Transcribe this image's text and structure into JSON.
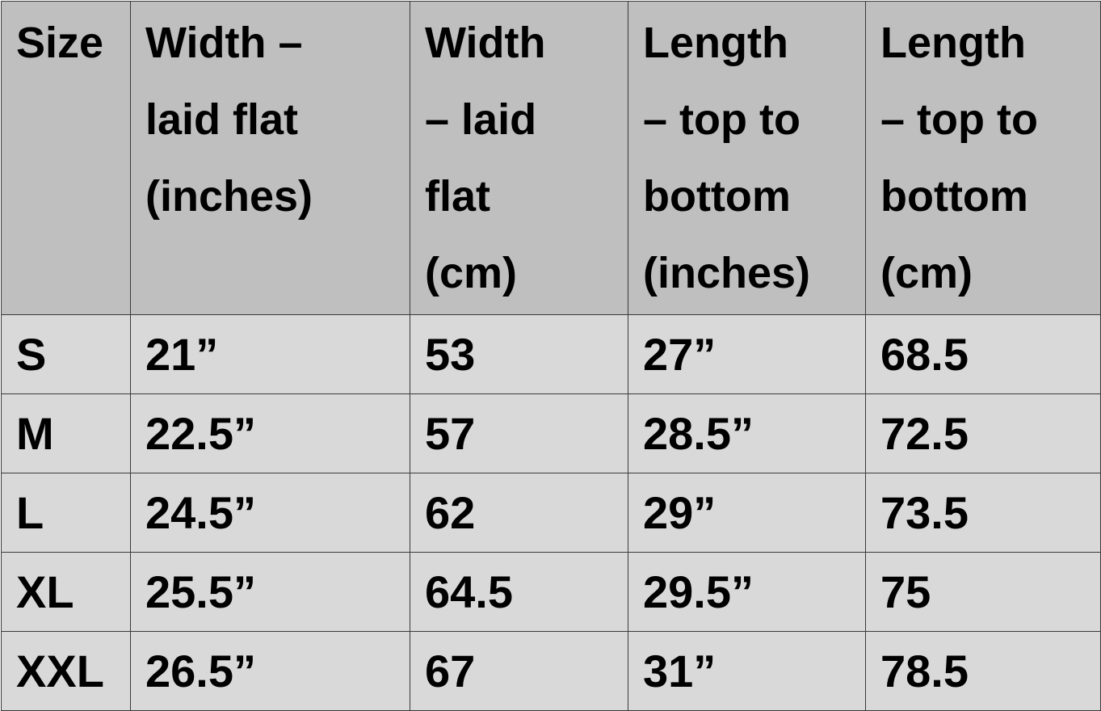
{
  "table": {
    "headers": [
      {
        "lines": [
          "Size"
        ]
      },
      {
        "lines": [
          "Width –",
          "laid flat",
          "(inches)"
        ]
      },
      {
        "lines": [
          "Width",
          "– laid",
          "flat",
          "(cm)"
        ]
      },
      {
        "lines": [
          "Length",
          "– top to",
          "bottom",
          "(inches)"
        ]
      },
      {
        "lines": [
          "Length",
          "– top to",
          "bottom",
          "(cm)"
        ]
      }
    ],
    "rows": [
      [
        "S",
        "21”",
        "53",
        "27”",
        "68.5"
      ],
      [
        "M",
        "22.5”",
        "57",
        "28.5”",
        "72.5"
      ],
      [
        "L",
        "24.5”",
        "62",
        "29”",
        "73.5"
      ],
      [
        "XL",
        "25.5”",
        "64.5",
        "29.5”",
        "75"
      ],
      [
        "XXL",
        "26.5”",
        "67",
        "31”",
        "78.5"
      ]
    ],
    "colors": {
      "header_bg": "#bfbfbf",
      "body_bg": "#d9d9d9",
      "border": "#3a3a3a"
    }
  }
}
